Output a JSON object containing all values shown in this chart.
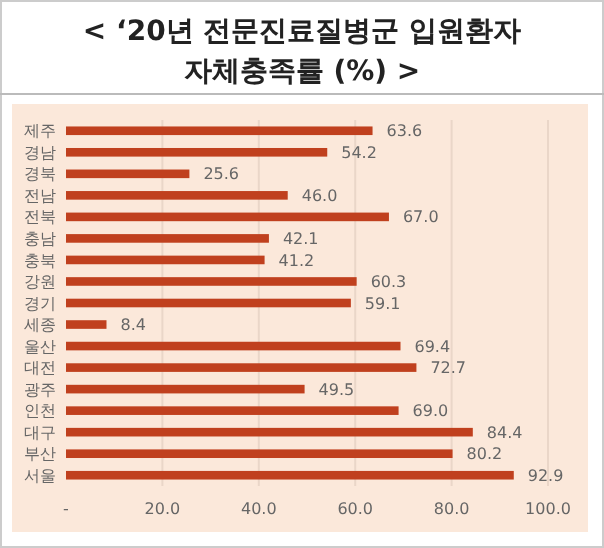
{
  "chart_data": {
    "type": "bar",
    "orientation": "horizontal",
    "title": "< ‘20년 전문진료질병군 입원환자 자체충족률 (%) >",
    "categories": [
      "제주",
      "경남",
      "경북",
      "전남",
      "전북",
      "충남",
      "충북",
      "강원",
      "경기",
      "세종",
      "울산",
      "대전",
      "광주",
      "인천",
      "대구",
      "부산",
      "서울"
    ],
    "values": [
      63.6,
      54.2,
      25.6,
      46.0,
      67.0,
      42.1,
      41.2,
      60.3,
      59.1,
      8.4,
      69.4,
      72.7,
      49.5,
      69.0,
      84.4,
      80.2,
      92.9
    ],
    "value_labels": [
      "63.6",
      "54.2",
      "25.6",
      "46.0",
      "67.0",
      "42.1",
      "41.2",
      "60.3",
      "59.1",
      "8.4",
      "69.4",
      "72.7",
      "49.5",
      "69.0",
      "84.4",
      "80.2",
      "92.9"
    ],
    "color": "#c0401e",
    "xlim": [
      0,
      100
    ],
    "xticks": [
      {
        "value": 0,
        "label": "-"
      },
      {
        "value": 20,
        "label": "20.0"
      },
      {
        "value": 40,
        "label": "40.0"
      },
      {
        "value": 60,
        "label": "60.0"
      },
      {
        "value": 80,
        "label": "80.0"
      },
      {
        "value": 100,
        "label": "100.0"
      }
    ],
    "grid": "x"
  }
}
